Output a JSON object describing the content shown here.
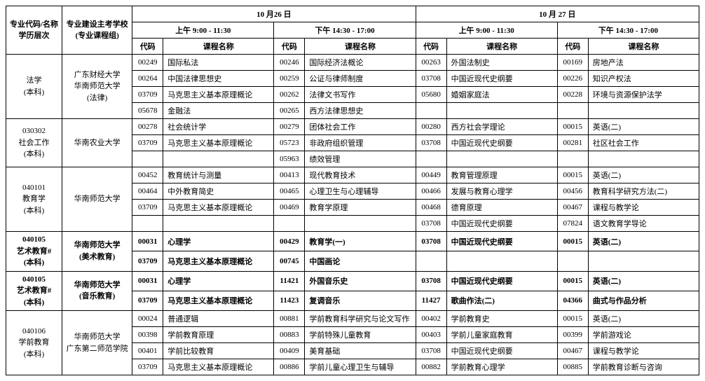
{
  "header": {
    "col_major_code": "专业代码/名称\n学历层次",
    "col_school": "专业建设主考学校\n(专业课程组)",
    "day1": "10 月26 日",
    "day2": "10 月 27 日",
    "am": "上午  9:00 - 11:30",
    "pm": "下午  14:30 - 17:00",
    "code": "代码",
    "course": "课程名称",
    "col_widths": {
      "major": 80,
      "school": 100,
      "code": 44,
      "name": 158
    }
  },
  "majors": [
    {
      "bold": false,
      "code_lines": [
        "法学",
        "(本科)"
      ],
      "school_lines": [
        "广东财经大学",
        "华南师范大学",
        "(法律)"
      ],
      "rows": [
        {
          "d1am": [
            "00249",
            "国际私法"
          ],
          "d1pm": [
            "00246",
            "国际经济法概论"
          ],
          "d2am": [
            "00263",
            "外国法制史"
          ],
          "d2pm": [
            "00169",
            "房地产法"
          ]
        },
        {
          "d1am": [
            "00264",
            "中国法律思想史"
          ],
          "d1pm": [
            "00259",
            "公证与律师制度"
          ],
          "d2am": [
            "03708",
            "中国近现代史纲要"
          ],
          "d2pm": [
            "00226",
            "知识产权法"
          ]
        },
        {
          "d1am": [
            "03709",
            "马克思主义基本原理概论"
          ],
          "d1pm": [
            "00262",
            "法律文书写作"
          ],
          "d2am": [
            "05680",
            "婚姻家庭法"
          ],
          "d2pm": [
            "00228",
            "环境与资源保护法学"
          ]
        },
        {
          "d1am": [
            "05678",
            "金融法"
          ],
          "d1pm": [
            "00265",
            "西方法律思想史"
          ],
          "d2am": [
            "",
            ""
          ],
          "d2pm": [
            "",
            ""
          ]
        }
      ]
    },
    {
      "bold": false,
      "code_lines": [
        "030302",
        "社会工作",
        "(本科)"
      ],
      "school_lines": [
        "华南农业大学"
      ],
      "rows": [
        {
          "d1am": [
            "00278",
            "社会统计学"
          ],
          "d1pm": [
            "00279",
            "团体社会工作"
          ],
          "d2am": [
            "00280",
            "西方社会学理论"
          ],
          "d2pm": [
            "00015",
            "英语(二)"
          ]
        },
        {
          "d1am": [
            "03709",
            "马克思主义基本原理概论"
          ],
          "d1pm": [
            "05723",
            "非政府组织管理"
          ],
          "d2am": [
            "03708",
            "中国近现代史纲要"
          ],
          "d2pm": [
            "00281",
            "社区社会工作"
          ]
        },
        {
          "d1am": [
            "",
            ""
          ],
          "d1pm": [
            "05963",
            "绩效管理"
          ],
          "d2am": [
            "",
            ""
          ],
          "d2pm": [
            "",
            ""
          ]
        }
      ]
    },
    {
      "bold": false,
      "code_lines": [
        "040101",
        "教育学",
        "(本科)"
      ],
      "school_lines": [
        "华南师范大学"
      ],
      "rows": [
        {
          "d1am": [
            "00452",
            "教育统计与测量"
          ],
          "d1pm": [
            "00413",
            "现代教育技术"
          ],
          "d2am": [
            "00449",
            "教育管理原理"
          ],
          "d2pm": [
            "00015",
            "英语(二)"
          ]
        },
        {
          "d1am": [
            "00464",
            "中外教育简史"
          ],
          "d1pm": [
            "00465",
            "心理卫生与心理辅导"
          ],
          "d2am": [
            "00466",
            "发展与教育心理学"
          ],
          "d2pm": [
            "00456",
            "教育科学研究方法(二)"
          ]
        },
        {
          "d1am": [
            "03709",
            "马克思主义基本原理概论"
          ],
          "d1pm": [
            "00469",
            "教育学原理"
          ],
          "d2am": [
            "00468",
            "德育原理"
          ],
          "d2pm": [
            "00467",
            "课程与教学论"
          ]
        },
        {
          "d1am": [
            "",
            ""
          ],
          "d1pm": [
            "",
            ""
          ],
          "d2am": [
            "03708",
            "中国近现代史纲要"
          ],
          "d2pm": [
            "07824",
            "语文教育学导论"
          ]
        }
      ]
    },
    {
      "bold": true,
      "code_lines": [
        "040105",
        "艺术教育#",
        "(本科)"
      ],
      "school_lines": [
        "华南师范大学",
        "(美术教育)"
      ],
      "rows": [
        {
          "d1am": [
            "00031",
            "心理学"
          ],
          "d1pm": [
            "00429",
            "教育学(一)"
          ],
          "d2am": [
            "03708",
            "中国近现代史纲要"
          ],
          "d2pm": [
            "00015",
            "英语(二)"
          ]
        },
        {
          "d1am": [
            "03709",
            "马克思主义基本原理概论"
          ],
          "d1pm": [
            "00745",
            "中国画论"
          ],
          "d2am": [
            "",
            ""
          ],
          "d2pm": [
            "",
            ""
          ]
        }
      ]
    },
    {
      "bold": true,
      "code_lines": [
        "040105",
        "艺术教育#",
        "(本科)"
      ],
      "school_lines": [
        "华南师范大学",
        "(音乐教育)"
      ],
      "rows": [
        {
          "d1am": [
            "00031",
            "心理学"
          ],
          "d1pm": [
            "11421",
            "外国音乐史"
          ],
          "d2am": [
            "03708",
            "中国近现代史纲要"
          ],
          "d2pm": [
            "00015",
            "英语(二)"
          ]
        },
        {
          "d1am": [
            "03709",
            "马克思主义基本原理概论"
          ],
          "d1pm": [
            "11423",
            "复调音乐"
          ],
          "d2am": [
            "11427",
            "歌曲作法(二)"
          ],
          "d2pm": [
            "04366",
            "曲式与作品分析"
          ]
        }
      ]
    },
    {
      "bold": false,
      "code_lines": [
        "040106",
        "学前教育",
        "(本科)"
      ],
      "school_lines": [
        "华南师范大学",
        "广东第二师范学院"
      ],
      "rows": [
        {
          "d1am": [
            "00024",
            "普通逻辑"
          ],
          "d1pm": [
            "00881",
            "学前教育科学研究与论文写作"
          ],
          "d2am": [
            "00402",
            "学前教育史"
          ],
          "d2pm": [
            "00015",
            "英语(二)"
          ]
        },
        {
          "d1am": [
            "00398",
            "学前教育原理"
          ],
          "d1pm": [
            "00883",
            "学前特殊儿童教育"
          ],
          "d2am": [
            "00403",
            "学前儿童家庭教育"
          ],
          "d2pm": [
            "00399",
            "学前游戏论"
          ]
        },
        {
          "d1am": [
            "00401",
            "学前比较教育"
          ],
          "d1pm": [
            "00409",
            "美育基础"
          ],
          "d2am": [
            "03708",
            "中国近现代史纲要"
          ],
          "d2pm": [
            "00467",
            "课程与教学论"
          ]
        },
        {
          "d1am": [
            "03709",
            "马克思主义基本原理概论"
          ],
          "d1pm": [
            "00886",
            "学前儿童心理卫生与辅导"
          ],
          "d2am": [
            "00882",
            "学前教育心理学"
          ],
          "d2pm": [
            "00885",
            "学前教育诊断与咨询"
          ]
        }
      ]
    }
  ]
}
